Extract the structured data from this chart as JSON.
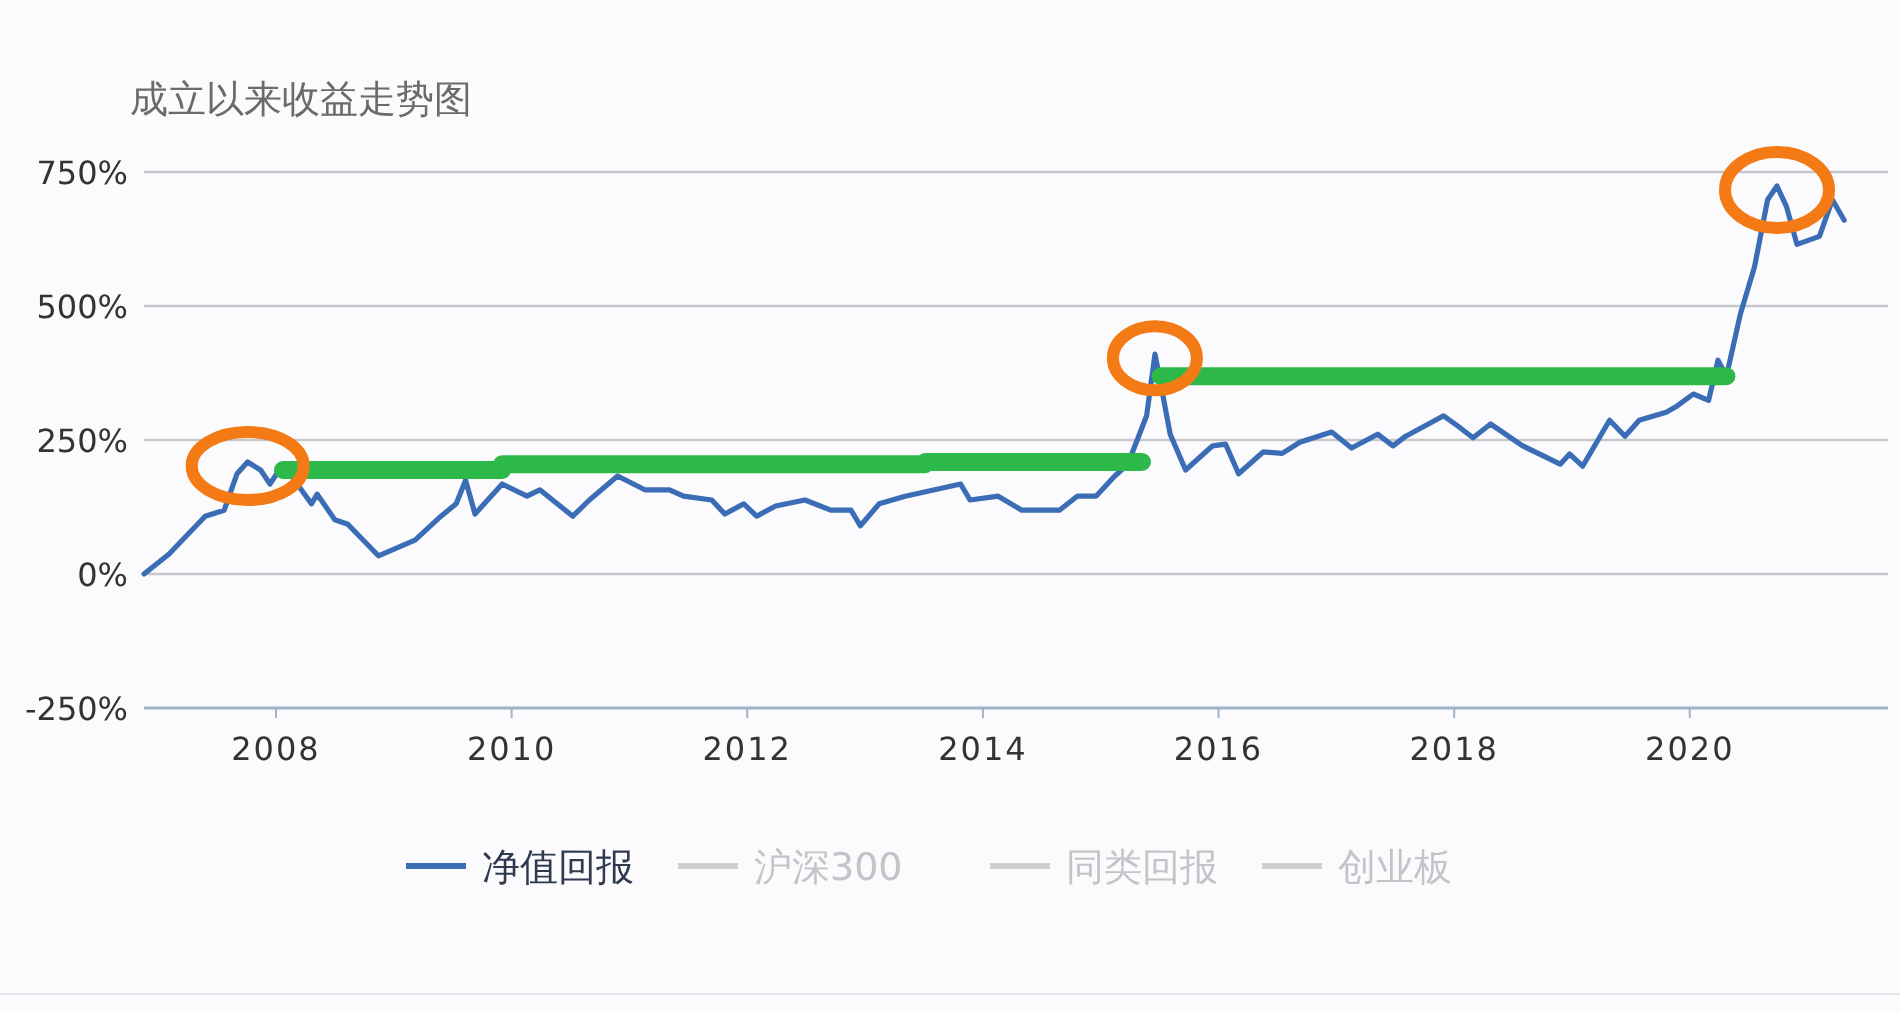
{
  "chart_data": {
    "type": "line",
    "title": "成立以来收益走势图",
    "xlim": [
      2006.88,
      2021.75
    ],
    "xticks": [
      2008,
      2010,
      2012,
      2014,
      2016,
      2018,
      2020
    ],
    "ylim": [
      -250,
      750
    ],
    "yticks": [
      {
        "value": -250,
        "label": "-250%"
      },
      {
        "value": 0,
        "label": "0%"
      },
      {
        "value": 250,
        "label": "250%"
      },
      {
        "value": 500,
        "label": "500%"
      },
      {
        "value": 750,
        "label": "750%"
      }
    ],
    "grid": "y",
    "legend": "bottom",
    "line_style": "solid",
    "marker": "none",
    "series": [
      {
        "name": "净值回报",
        "color": "#3a6db5",
        "x": [
          2006.88,
          2007.09,
          2007.4,
          2007.56,
          2007.67,
          2007.76,
          2007.87,
          2007.95,
          2008.06,
          2008.3,
          2008.35,
          2008.5,
          2008.61,
          2008.87,
          2009.18,
          2009.4,
          2009.53,
          2009.61,
          2009.69,
          2009.92,
          2010.13,
          2010.24,
          2010.52,
          2010.66,
          2010.9,
          2011.13,
          2011.34,
          2011.46,
          2011.7,
          2011.81,
          2011.97,
          2012.08,
          2012.24,
          2012.49,
          2012.71,
          2012.88,
          2012.96,
          2013.12,
          2013.34,
          2013.59,
          2013.81,
          2013.89,
          2014.13,
          2014.33,
          2014.65,
          2014.8,
          2014.96,
          2015.12,
          2015.23,
          2015.39,
          2015.46,
          2015.51,
          2015.59,
          2015.72,
          2015.95,
          2016.06,
          2016.17,
          2016.38,
          2016.54,
          2016.69,
          2016.96,
          2017.13,
          2017.35,
          2017.48,
          2017.59,
          2017.91,
          2018.03,
          2018.16,
          2018.31,
          2018.58,
          2018.9,
          2018.98,
          2019.09,
          2019.32,
          2019.45,
          2019.57,
          2019.8,
          2019.89,
          2020.03,
          2020.16,
          2020.24,
          2020.31,
          2020.43,
          2020.55,
          2020.66,
          2020.74,
          2020.82,
          2020.91,
          2021.1,
          2021.21,
          2021.31
        ],
        "values": [
          0,
          37,
          108,
          119,
          187,
          209,
          194,
          168,
          205,
          131,
          149,
          101,
          93,
          34,
          63,
          108,
          131,
          175,
          112,
          168,
          145,
          157,
          108,
          138,
          183,
          157,
          157,
          145,
          138,
          112,
          131,
          108,
          127,
          138,
          119,
          119,
          90,
          131,
          145,
          157,
          168,
          138,
          145,
          119,
          119,
          145,
          145,
          183,
          205,
          295,
          410,
          354,
          261,
          194,
          239,
          242,
          187,
          228,
          225,
          246,
          265,
          235,
          261,
          239,
          257,
          295,
          276,
          254,
          280,
          239,
          205,
          224,
          201,
          287,
          257,
          287,
          302,
          313,
          336,
          324,
          399,
          369,
          485,
          574,
          698,
          724,
          686,
          615,
          630,
          698,
          660
        ]
      },
      {
        "name": "沪深300",
        "color": "#cfcfcf"
      },
      {
        "name": "同类回报",
        "color": "#cfcfcf"
      },
      {
        "name": "创业板",
        "color": "#cfcfcf"
      },
      {
        "color": "#2db84a",
        "x": [
          2008.06,
          2009.92,
          2009.92,
          2013.51,
          2013.51,
          2015.35
        ],
        "values": [
          194,
          194,
          205,
          205,
          209,
          209
        ]
      },
      {
        "color": "#2db84a",
        "x": [
          2015.51,
          2020.31
        ],
        "values": [
          369,
          369
        ]
      }
    ]
  }
}
